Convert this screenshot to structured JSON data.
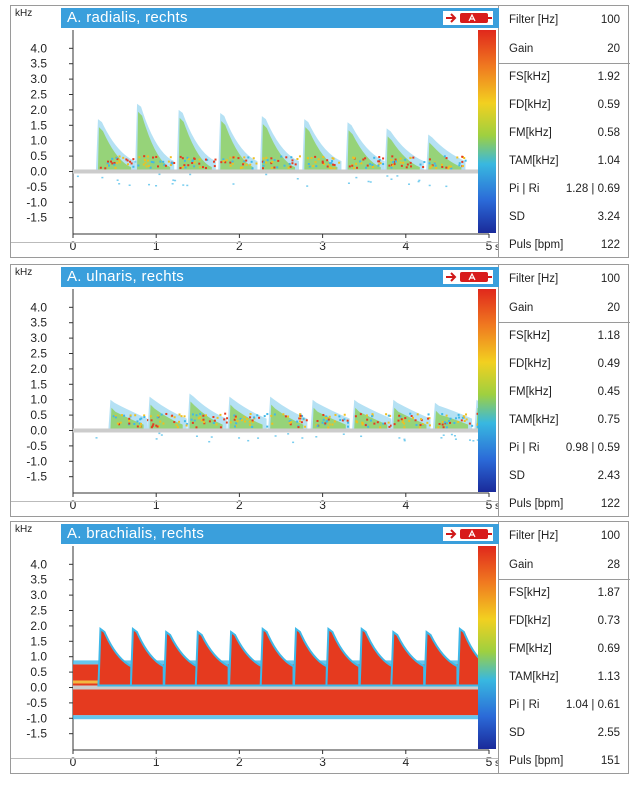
{
  "units": {
    "freq": "kHz",
    "sec": "s"
  },
  "panels": [
    {
      "title": "A. radialis, rechts",
      "params": [
        {
          "label": "Filter [Hz]",
          "value": "100"
        },
        {
          "label": "Gain",
          "value": "20"
        },
        {
          "label": "FS[kHz]",
          "value": "1.92"
        },
        {
          "label": "FD[kHz]",
          "value": "0.59"
        },
        {
          "label": "FM[kHz]",
          "value": "0.58"
        },
        {
          "label": "TAM[kHz]",
          "value": "1.04"
        },
        {
          "label": "Pi | Ri",
          "value": "1.28 | 0.69"
        },
        {
          "label": "SD",
          "value": "3.24"
        },
        {
          "label": "Puls [bpm]",
          "value": "122"
        }
      ]
    },
    {
      "title": "A. ulnaris, rechts",
      "params": [
        {
          "label": "Filter [Hz]",
          "value": "100"
        },
        {
          "label": "Gain",
          "value": "20"
        },
        {
          "label": "FS[kHz]",
          "value": "1.18"
        },
        {
          "label": "FD[kHz]",
          "value": "0.49"
        },
        {
          "label": "FM[kHz]",
          "value": "0.45"
        },
        {
          "label": "TAM[kHz]",
          "value": "0.75"
        },
        {
          "label": "Pi | Ri",
          "value": "0.98 | 0.59"
        },
        {
          "label": "SD",
          "value": "2.43"
        },
        {
          "label": "Puls [bpm]",
          "value": "122"
        }
      ]
    },
    {
      "title": "A. brachialis, rechts",
      "params": [
        {
          "label": "Filter [Hz]",
          "value": "100"
        },
        {
          "label": "Gain",
          "value": "28"
        },
        {
          "label": "FS[kHz]",
          "value": "1.87"
        },
        {
          "label": "FD[kHz]",
          "value": "0.73"
        },
        {
          "label": "FM[kHz]",
          "value": "0.69"
        },
        {
          "label": "TAM[kHz]",
          "value": "1.13"
        },
        {
          "label": "Pi | Ri",
          "value": "1.04 | 0.61"
        },
        {
          "label": "SD",
          "value": "2.55"
        },
        {
          "label": "Puls [bpm]",
          "value": "151"
        }
      ]
    }
  ],
  "chart_data": [
    {
      "type": "heatmap",
      "title": "A. radialis, rechts",
      "ylabel": "kHz",
      "xlim": [
        0,
        5
      ],
      "ylim": [
        -1.9,
        4.4
      ],
      "x_ticks": [
        "0",
        "1",
        "2",
        "3",
        "4",
        "5"
      ],
      "y_ticks": [
        "4.0",
        "3.5",
        "3.0",
        "2.5",
        "2.0",
        "1.5",
        "1.0",
        "0.5",
        "0.0",
        "-0.5",
        "-1.0",
        "-1.5"
      ],
      "beats_s": [
        0.3,
        0.77,
        1.27,
        1.77,
        2.27,
        2.78,
        3.3,
        3.77,
        4.27
      ],
      "peak_khz": [
        1.7,
        2.2,
        2.0,
        1.9,
        1.8,
        1.7,
        1.6,
        1.4,
        1.2
      ],
      "diastolic_khz": 0.4,
      "reverse_khz": -0.4,
      "intensity": "mixed",
      "colors": {
        "high": "#e53a1f",
        "mid": "#f0c020",
        "low": "#3fb8e8",
        "faint": "#a8dcf2"
      }
    },
    {
      "type": "heatmap",
      "title": "A. ulnaris, rechts",
      "ylabel": "kHz",
      "xlim": [
        0,
        5
      ],
      "ylim": [
        -1.9,
        4.4
      ],
      "x_ticks": [
        "0",
        "1",
        "2",
        "3",
        "4",
        "5"
      ],
      "y_ticks": [
        "4.0",
        "3.5",
        "3.0",
        "2.5",
        "2.0",
        "1.5",
        "1.0",
        "0.5",
        "0.0",
        "-0.5",
        "-1.0",
        "-1.5"
      ],
      "beats_s": [
        0.45,
        0.92,
        1.4,
        1.88,
        2.37,
        2.88,
        3.38,
        3.85,
        4.35,
        4.85
      ],
      "peak_khz": [
        1.0,
        1.1,
        1.2,
        1.1,
        1.1,
        1.0,
        1.0,
        1.0,
        0.9,
        1.0
      ],
      "diastolic_khz": 0.45,
      "reverse_khz": -0.3,
      "intensity": "mixed",
      "colors": {
        "high": "#e53a1f",
        "mid": "#f0c020",
        "low": "#3fb8e8",
        "faint": "#a8dcf2"
      }
    },
    {
      "type": "heatmap",
      "title": "A. brachialis, rechts",
      "ylabel": "kHz",
      "xlim": [
        0,
        5
      ],
      "ylim": [
        -1.9,
        4.4
      ],
      "x_ticks": [
        "0",
        "1",
        "2",
        "3",
        "4",
        "5"
      ],
      "y_ticks": [
        "4.0",
        "3.5",
        "3.0",
        "2.5",
        "2.0",
        "1.5",
        "1.0",
        "0.5",
        "0.0",
        "-0.5",
        "-1.0",
        "-1.5"
      ],
      "beats_s": [
        0.33,
        0.72,
        1.12,
        1.5,
        1.9,
        2.28,
        2.68,
        3.07,
        3.47,
        3.85,
        4.25,
        4.65
      ],
      "peak_khz": [
        1.9,
        1.9,
        1.8,
        1.8,
        1.8,
        1.9,
        1.9,
        1.9,
        1.9,
        1.8,
        1.8,
        1.9
      ],
      "diastolic_khz": 0.75,
      "reverse_khz": -0.9,
      "intensity": "high",
      "colors": {
        "high": "#e53a1f",
        "mid": "#f0c020",
        "low": "#3fb8e8",
        "faint": "#a8dcf2"
      }
    }
  ]
}
